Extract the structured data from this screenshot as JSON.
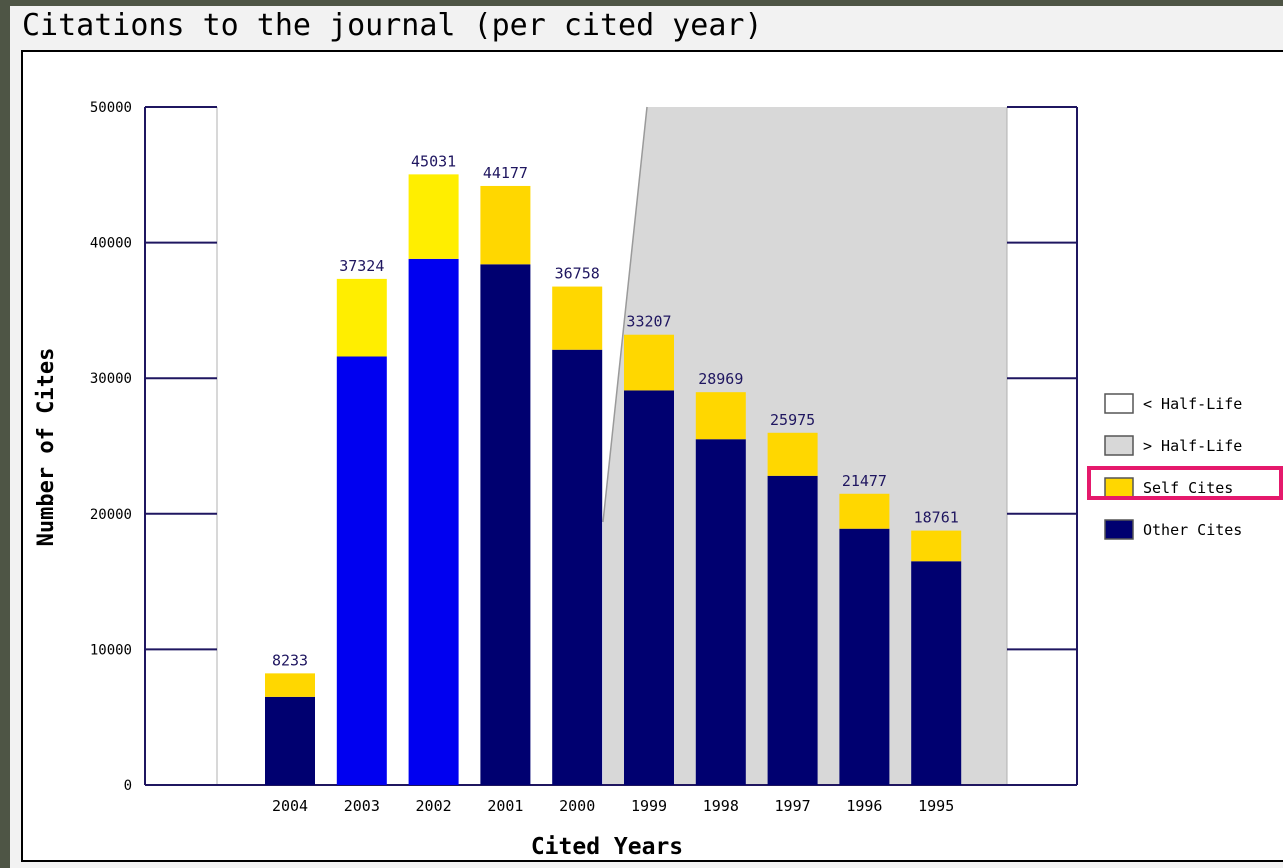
{
  "page": {
    "title": "Citations to the journal (per cited year)"
  },
  "chart_data": {
    "type": "bar",
    "stacked": true,
    "title": "Citations to the journal (per cited year)",
    "xlabel": "Cited Years",
    "ylabel": "Number of Cites",
    "ylim": [
      0,
      50000
    ],
    "yticks": [
      0,
      10000,
      20000,
      30000,
      40000,
      50000
    ],
    "ytick_labels": [
      "0",
      "10000",
      "20000",
      "30000",
      "40000",
      "50000"
    ],
    "grid": false,
    "legend_position": "right",
    "categories": [
      "2004",
      "2003",
      "2002",
      "2001",
      "2000",
      "1999",
      "1998",
      "1997",
      "1996",
      "1995"
    ],
    "totals": [
      8233,
      37324,
      45031,
      44177,
      36758,
      33207,
      28969,
      25975,
      21477,
      18761
    ],
    "total_labels": [
      "8233",
      "37324",
      "45031",
      "44177",
      "36758",
      "33207",
      "28969",
      "25975",
      "21477",
      "18761"
    ],
    "series": [
      {
        "name": "Other Cites",
        "values": [
          6500,
          31600,
          38800,
          38400,
          32100,
          29100,
          25500,
          22800,
          18900,
          16500
        ]
      },
      {
        "name": "Self Cites",
        "values": [
          1733,
          5724,
          6231,
          5777,
          4658,
          4107,
          3469,
          3175,
          2577,
          2261
        ]
      }
    ],
    "bar_colors": [
      "#000070",
      "#0000f0",
      "#0000f0",
      "#000070",
      "#000070",
      "#000070",
      "#000070",
      "#000070",
      "#000070",
      "#000070"
    ],
    "self_colors": [
      "#ffd700",
      "#ffee00",
      "#ffee00",
      "#ffd700",
      "#ffd700",
      "#ffd700",
      "#ffd700",
      "#ffd700",
      "#ffd700",
      "#ffd700"
    ],
    "half_life_region": {
      "description": "region beyond the cited half-life shaded grey",
      "starts_after_category": "2000",
      "top_value": 50000
    },
    "legend": [
      {
        "label": "< Half-Life",
        "swatch": "#ffffff"
      },
      {
        "label": "> Half-Life",
        "swatch": "#d8d8d8"
      },
      {
        "label": "Self Cites",
        "swatch": "#ffd700",
        "highlighted": true
      },
      {
        "label": "Other Cites",
        "swatch": "#000070"
      }
    ]
  },
  "colors": {
    "axis": "#1f1660",
    "label_text": "#1f1660",
    "shade": "#d8d8d8",
    "highlight": "#e5196c"
  }
}
